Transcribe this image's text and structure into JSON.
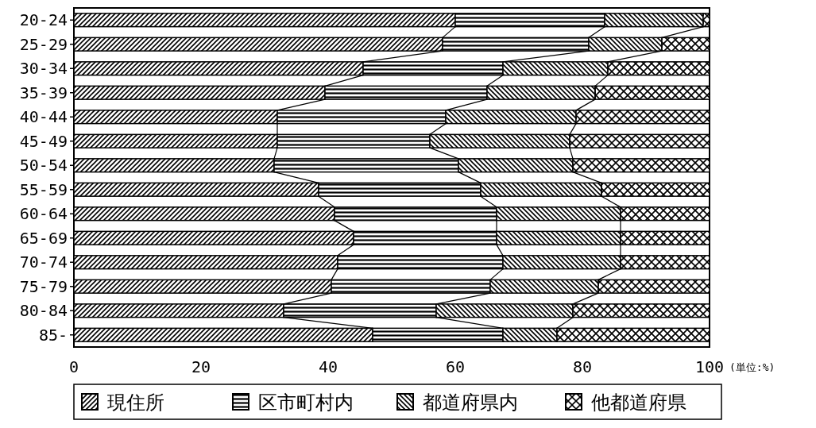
{
  "chart_data": {
    "type": "bar",
    "orientation": "horizontal",
    "stacked": true,
    "xlabel": "(単位:%)",
    "categories": [
      "20-24",
      "25-29",
      "30-34",
      "35-39",
      "40-44",
      "45-49",
      "50-54",
      "55-59",
      "60-64",
      "65-69",
      "70-74",
      "75-79",
      "80-84",
      "85-"
    ],
    "series": [
      {
        "name": "現住所",
        "color": "#000000",
        "values": [
          60,
          58,
          45.5,
          39.5,
          32,
          32,
          31.5,
          38.5,
          41,
          44,
          41.5,
          40.5,
          33,
          47
        ]
      },
      {
        "name": "区市町村内",
        "color": "#000000",
        "values": [
          23.5,
          23,
          22,
          25.5,
          26.5,
          24,
          29,
          25.5,
          25.5,
          22.5,
          26,
          25,
          24,
          20.5
        ]
      },
      {
        "name": "都道府県内",
        "color": "#000000",
        "values": [
          15.5,
          11.5,
          16.5,
          17,
          20.5,
          22,
          18,
          19,
          19.5,
          19.5,
          18.5,
          17,
          21.5,
          8.5
        ]
      },
      {
        "name": "他都道府県",
        "color": "#000000",
        "values": [
          1,
          7.5,
          16,
          18,
          21,
          22,
          21.5,
          17,
          14,
          14,
          14,
          17.5,
          21.5,
          24
        ]
      }
    ],
    "xlim": [
      0,
      100
    ],
    "xticks": [
      0,
      20,
      40,
      60,
      80,
      100
    ],
    "legend": "bottom",
    "grid": false
  }
}
